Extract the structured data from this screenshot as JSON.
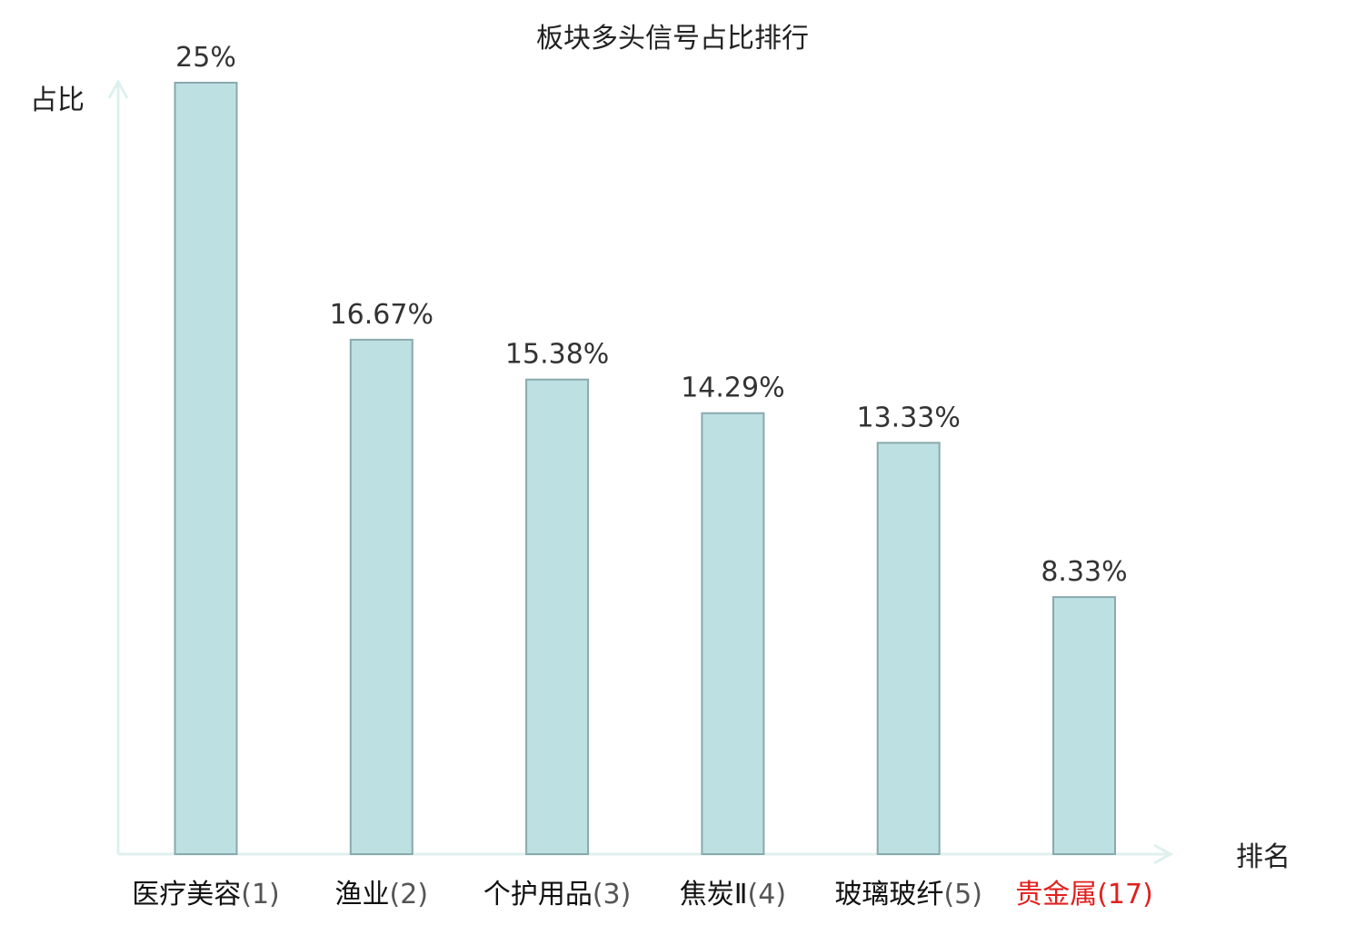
{
  "chart_data": {
    "type": "bar",
    "title": "板块多头信号占比排行",
    "ylabel": "占比",
    "xlabel": "排名",
    "categories": [
      {
        "name": "医疗美容",
        "rank": "(1)",
        "highlight": false
      },
      {
        "name": "渔业",
        "rank": "(2)",
        "highlight": false
      },
      {
        "name": "个护用品",
        "rank": "(3)",
        "highlight": false
      },
      {
        "name": "焦炭Ⅱ",
        "rank": "(4)",
        "highlight": false
      },
      {
        "name": "玻璃玻纤",
        "rank": "(5)",
        "highlight": false
      },
      {
        "name": "贵金属",
        "rank": "(17)",
        "highlight": true
      }
    ],
    "values": [
      25,
      16.67,
      15.38,
      14.29,
      13.33,
      8.33
    ],
    "value_labels": [
      "25%",
      "16.67%",
      "15.38%",
      "14.29%",
      "13.33%",
      "8.33%"
    ],
    "ylim": [
      0,
      25
    ],
    "grid": false,
    "colors": {
      "bar_fill": "#bde0e3",
      "bar_stroke": "#8aa9ad",
      "axis": "#dff0ee",
      "label_default": "#333333",
      "label_highlight": "#e0201e",
      "rank_default": "#555555"
    }
  }
}
